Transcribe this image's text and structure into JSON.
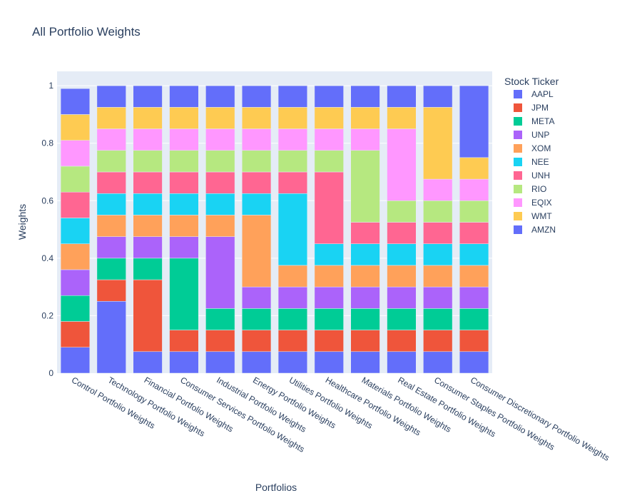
{
  "chart_data": {
    "type": "bar",
    "barmode": "stack",
    "title": "All Portfolio Weights",
    "xlabel": "Portfolios",
    "ylabel": "Weights",
    "ylim": [
      0,
      1.05
    ],
    "yticks": [
      0,
      0.2,
      0.4,
      0.6,
      0.8,
      1
    ],
    "ytick_labels": [
      "0",
      "0.2",
      "0.4",
      "0.6",
      "0.8",
      "1"
    ],
    "grid": true,
    "legend_title": "Stock Ticker",
    "legend_position": "right",
    "categories": [
      "Control Portfolio Weights",
      "Technology Portfolio Weights",
      "Financial Portfolio Weights",
      "Consumer Services Portfolio Weights",
      "Industrial Portfolio Weights",
      "Energy Portfolio Weights",
      "Utilities Portfolio Weights",
      "Healthcare Portfolio Weights",
      "Materials Portfolio Weights",
      "Real Estate Portfolio Weights",
      "Consumer Staples Portfolio Weights",
      "Consumer Discretionary Portfolio Weights"
    ],
    "series": [
      {
        "name": "AAPL",
        "color": "#636efa",
        "values": [
          0.09,
          0.25,
          0.075,
          0.075,
          0.075,
          0.075,
          0.075,
          0.075,
          0.075,
          0.075,
          0.075,
          0.075
        ]
      },
      {
        "name": "JPM",
        "color": "#EF553B",
        "values": [
          0.09,
          0.075,
          0.25,
          0.075,
          0.075,
          0.075,
          0.075,
          0.075,
          0.075,
          0.075,
          0.075,
          0.075
        ]
      },
      {
        "name": "META",
        "color": "#00cc96",
        "values": [
          0.09,
          0.075,
          0.075,
          0.25,
          0.075,
          0.075,
          0.075,
          0.075,
          0.075,
          0.075,
          0.075,
          0.075
        ]
      },
      {
        "name": "UNP",
        "color": "#ab63fa",
        "values": [
          0.09,
          0.075,
          0.075,
          0.075,
          0.25,
          0.075,
          0.075,
          0.075,
          0.075,
          0.075,
          0.075,
          0.075
        ]
      },
      {
        "name": "XOM",
        "color": "#FFA15A",
        "values": [
          0.09,
          0.075,
          0.075,
          0.075,
          0.075,
          0.25,
          0.075,
          0.075,
          0.075,
          0.075,
          0.075,
          0.075
        ]
      },
      {
        "name": "NEE",
        "color": "#19d3f3",
        "values": [
          0.09,
          0.075,
          0.075,
          0.075,
          0.075,
          0.075,
          0.25,
          0.075,
          0.075,
          0.075,
          0.075,
          0.075
        ]
      },
      {
        "name": "UNH",
        "color": "#FF6692",
        "values": [
          0.09,
          0.075,
          0.075,
          0.075,
          0.075,
          0.075,
          0.075,
          0.25,
          0.075,
          0.075,
          0.075,
          0.075
        ]
      },
      {
        "name": "RIO",
        "color": "#B6E880",
        "values": [
          0.09,
          0.075,
          0.075,
          0.075,
          0.075,
          0.075,
          0.075,
          0.075,
          0.25,
          0.075,
          0.075,
          0.075
        ]
      },
      {
        "name": "EQIX",
        "color": "#FF97FF",
        "values": [
          0.09,
          0.075,
          0.075,
          0.075,
          0.075,
          0.075,
          0.075,
          0.075,
          0.075,
          0.25,
          0.075,
          0.075
        ]
      },
      {
        "name": "WMT",
        "color": "#FECB52",
        "values": [
          0.09,
          0.075,
          0.075,
          0.075,
          0.075,
          0.075,
          0.075,
          0.075,
          0.075,
          0.075,
          0.25,
          0.075
        ]
      },
      {
        "name": "AMZN",
        "color": "#636efa",
        "values": [
          0.09,
          0.075,
          0.075,
          0.075,
          0.075,
          0.075,
          0.075,
          0.075,
          0.075,
          0.075,
          0.075,
          0.25
        ]
      }
    ]
  }
}
